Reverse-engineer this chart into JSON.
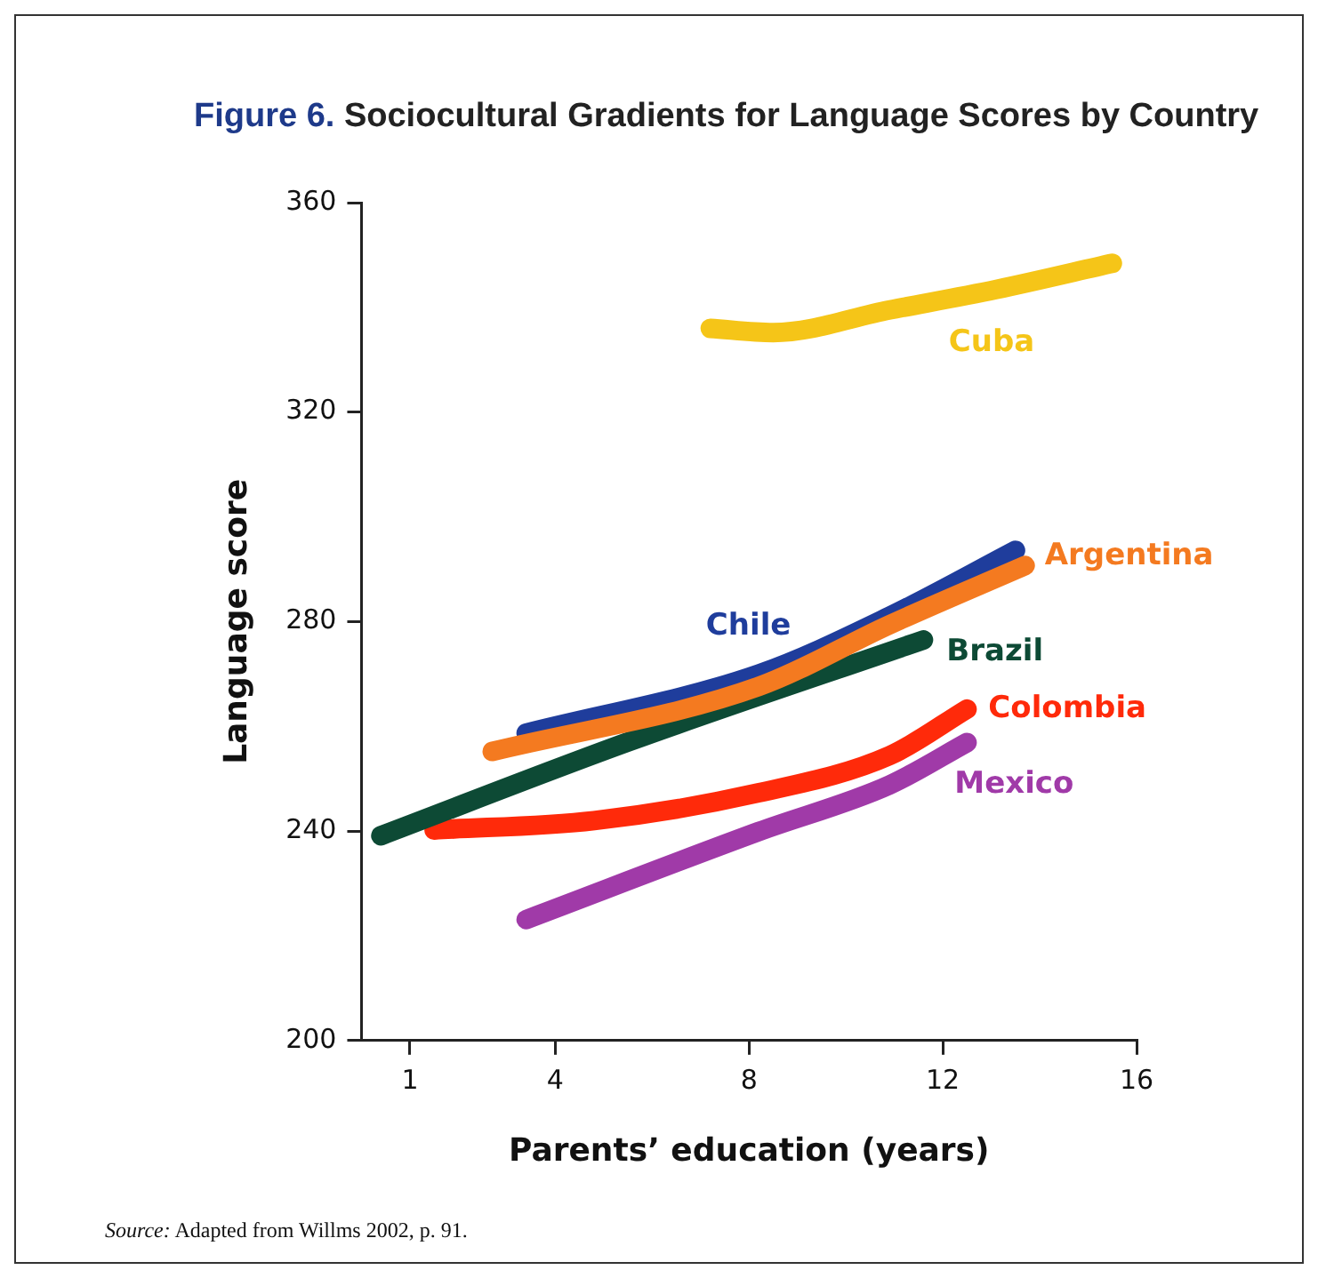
{
  "chart_data": {
    "type": "line",
    "title": "Figure 6. Sociocultural Gradients for Language Scores by Country",
    "xlabel": "Parents’ education (years)",
    "ylabel": "Language score",
    "annotations": [
      "Source: Adapted from Willms 2002, p. 91."
    ],
    "xlim": [
      0,
      16
    ],
    "xticks": [
      1,
      4,
      8,
      12,
      16
    ],
    "ylim": [
      200,
      360
    ],
    "yticks": [
      200,
      240,
      280,
      320,
      360
    ],
    "grid": false,
    "legend": false,
    "marker": "none",
    "line_style": "solid",
    "series": [
      {
        "name": "Cuba",
        "color": "#f5c518",
        "x": [
          7.2,
          8.5,
          10.9,
          13.1,
          15.5
        ],
        "values": [
          336,
          335.2,
          339.5,
          343.4,
          348.4
        ]
      },
      {
        "name": "Argentina",
        "color": "#f47a20",
        "x": [
          2.7,
          8.2,
          10.9,
          13.7
        ],
        "values": [
          255.2,
          267.6,
          279.4,
          290.7
        ]
      },
      {
        "name": "Chile",
        "color": "#1f3d9c",
        "x": [
          3.4,
          8.2,
          10.9,
          13.5
        ],
        "values": [
          258.7,
          270,
          281,
          293.6
        ]
      },
      {
        "name": "Brazil",
        "color": "#0d4a35",
        "x": [
          0.4,
          5.5,
          11.6
        ],
        "values": [
          239.1,
          257,
          276.5
        ]
      },
      {
        "name": "Colombia",
        "color": "#ff2a0a",
        "x": [
          1.5,
          4.8,
          8.2,
          10.9,
          12.5
        ],
        "values": [
          240.2,
          242,
          247.3,
          254.4,
          263.3
        ]
      },
      {
        "name": "Mexico",
        "color": "#a03aa8",
        "x": [
          3.4,
          8.2,
          10.9,
          12.5
        ],
        "values": [
          223.1,
          239.9,
          248.8,
          256.9
        ]
      }
    ]
  }
}
